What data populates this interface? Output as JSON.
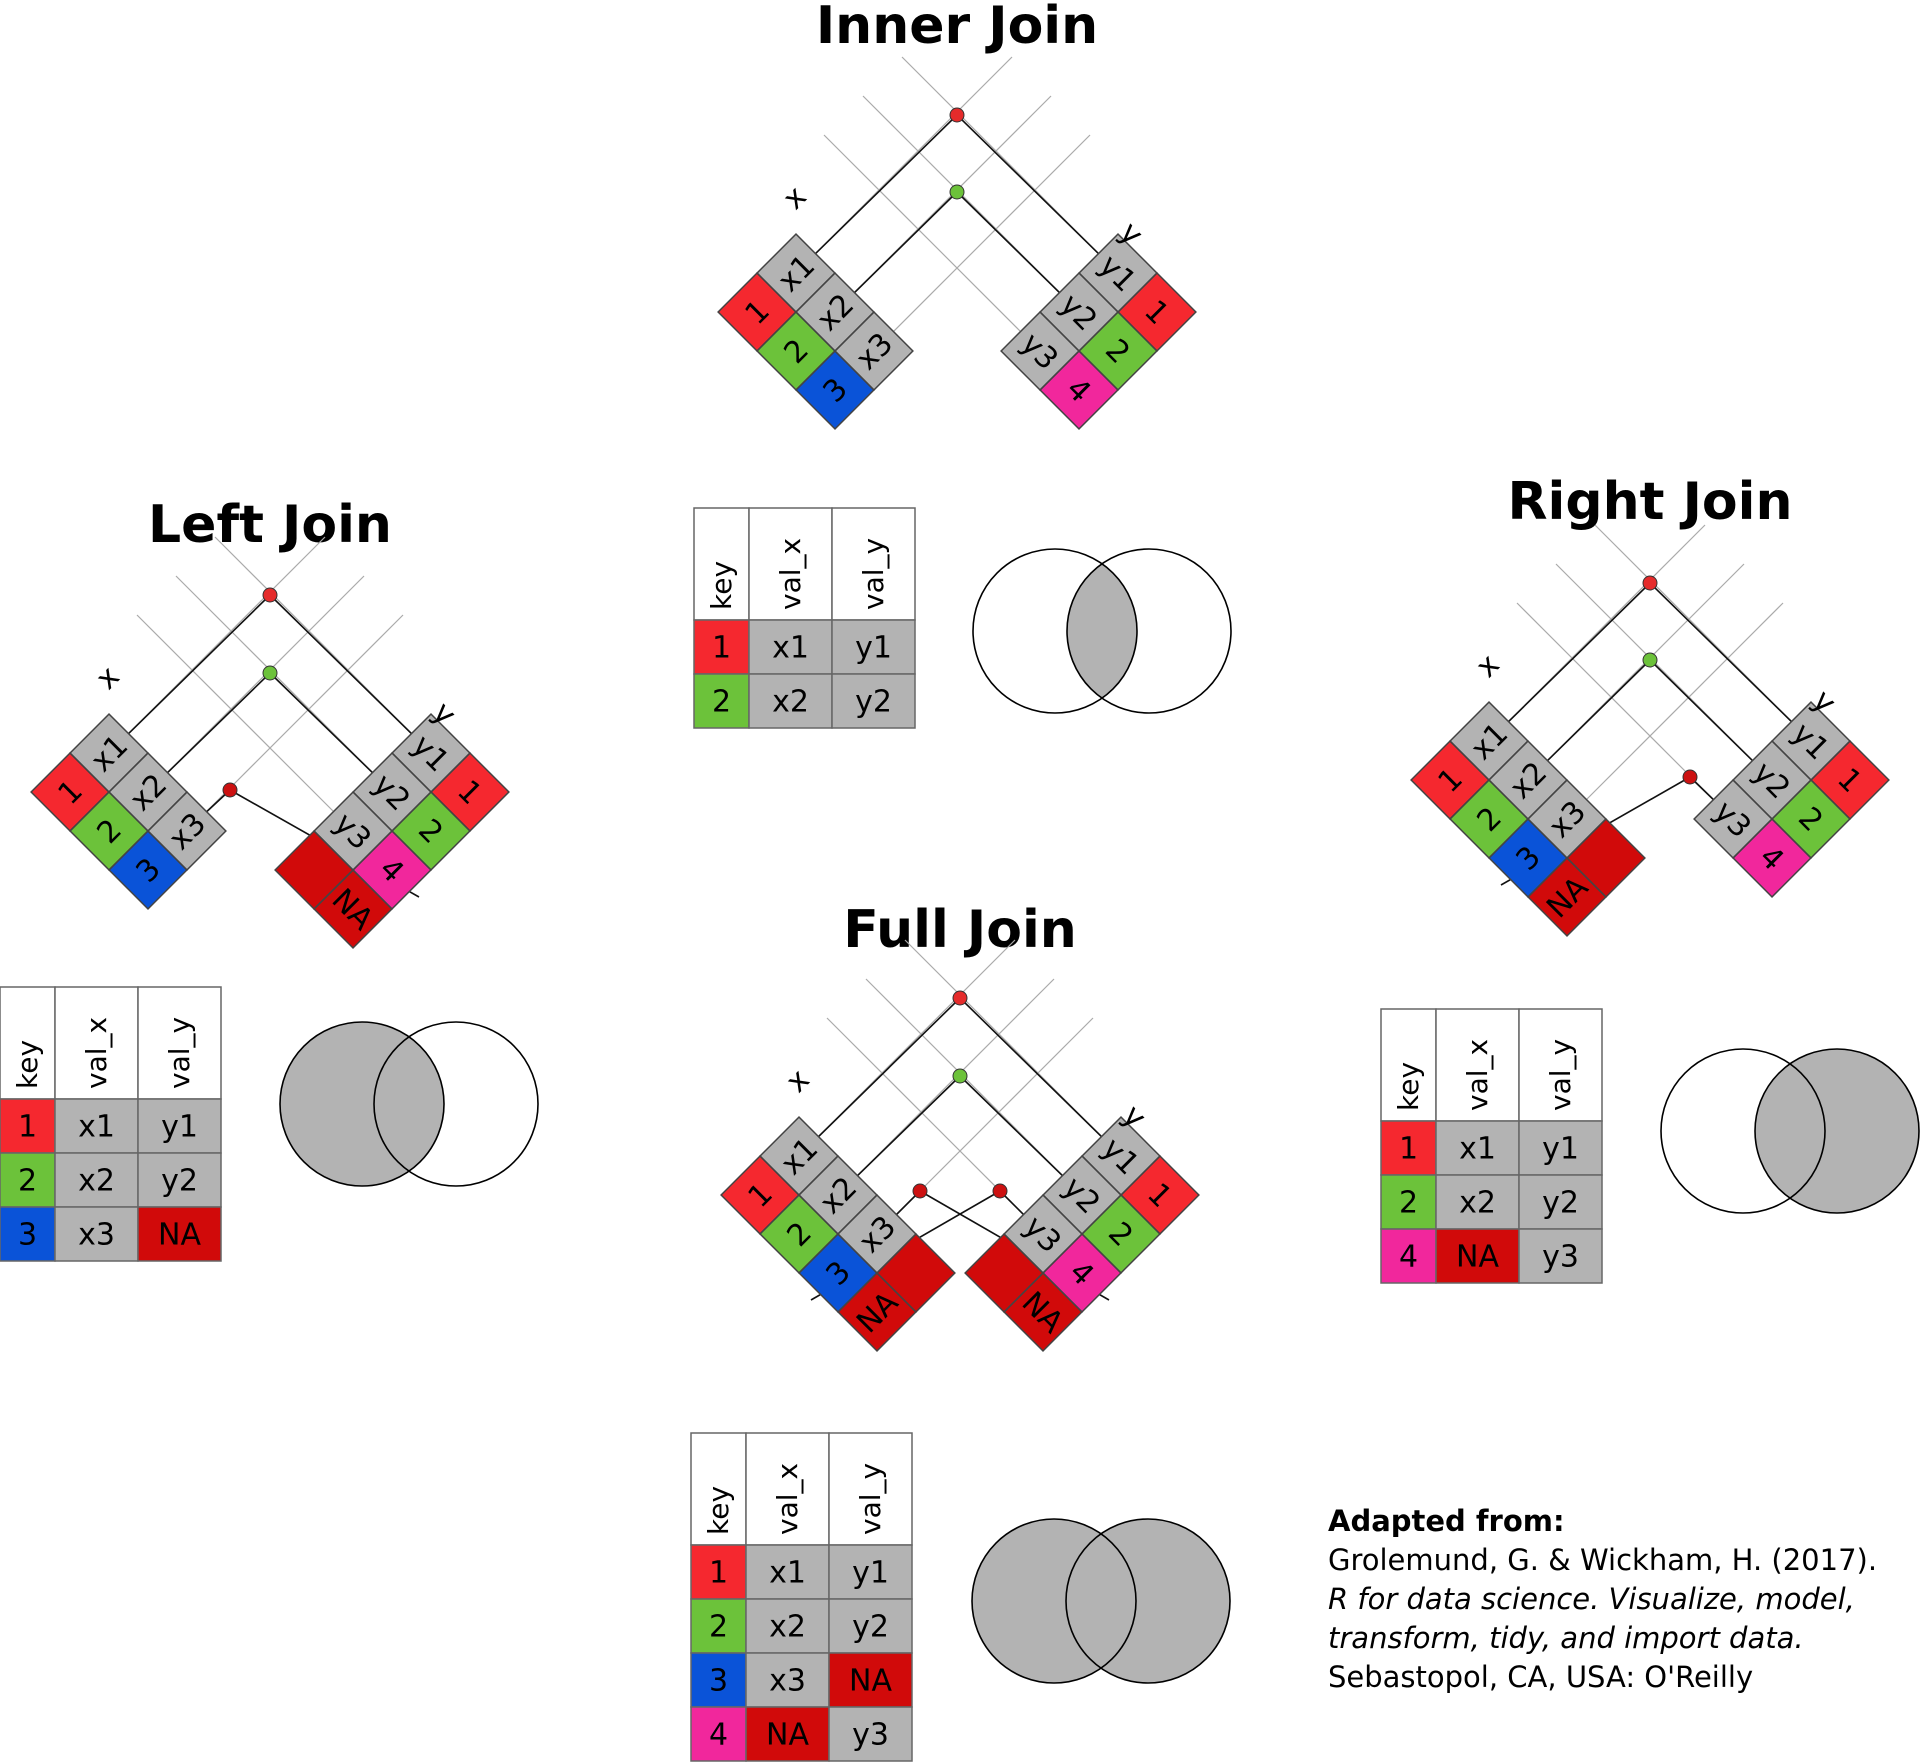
{
  "colors": {
    "k1": "#f5282f",
    "k2": "#6cc23a",
    "k3": "#0a53d8",
    "k4": "#f1279c",
    "na": "#d10a0a",
    "val": "#b3b3b3",
    "venn_fill": "#b3b3b3",
    "dot_red": "#e52b2b",
    "dot_green": "#6cc23a",
    "dot_dark": "#cc1111"
  },
  "labels": {
    "x": "x",
    "y": "y"
  },
  "x_rows": [
    {
      "key": "1",
      "val": "x1"
    },
    {
      "key": "2",
      "val": "x2"
    },
    {
      "key": "3",
      "val": "x3"
    }
  ],
  "y_rows": [
    {
      "key": "1",
      "val": "y1"
    },
    {
      "key": "2",
      "val": "y2"
    },
    {
      "key": "4",
      "val": "y3"
    }
  ],
  "na": "NA",
  "headers": [
    "key",
    "val_x",
    "val_y"
  ],
  "joins": {
    "inner": {
      "title": "Inner Join",
      "venn": "inner",
      "rows": [
        [
          "1",
          "x1",
          "y1"
        ],
        [
          "2",
          "x2",
          "y2"
        ]
      ]
    },
    "left": {
      "title": "Left Join",
      "venn": "left",
      "rows": [
        [
          "1",
          "x1",
          "y1"
        ],
        [
          "2",
          "x2",
          "y2"
        ],
        [
          "3",
          "x3",
          "NA"
        ]
      ]
    },
    "right": {
      "title": "Right Join",
      "venn": "right",
      "rows": [
        [
          "1",
          "x1",
          "y1"
        ],
        [
          "2",
          "x2",
          "y2"
        ],
        [
          "4",
          "NA",
          "y3"
        ]
      ]
    },
    "full": {
      "title": "Full Join",
      "venn": "full",
      "rows": [
        [
          "1",
          "x1",
          "y1"
        ],
        [
          "2",
          "x2",
          "y2"
        ],
        [
          "3",
          "x3",
          "NA"
        ],
        [
          "4",
          "NA",
          "y3"
        ]
      ]
    }
  },
  "citation": {
    "heading": "Adapted from:",
    "line1": "Grolemund, G. & Wickham, H. (2017).",
    "line2": "R for data science. Visualize, model,",
    "line3": "transform, tidy, and import data.",
    "line4": "Sebastopol, CA, USA: O'Reilly"
  }
}
